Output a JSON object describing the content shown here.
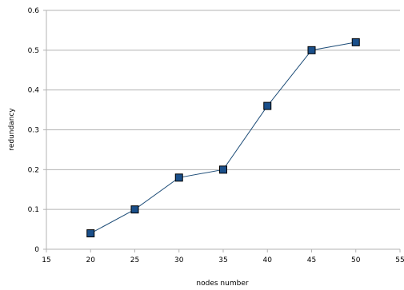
{
  "chart_data": {
    "type": "line",
    "title": "",
    "xlabel": "nodes number",
    "ylabel": "redundancy",
    "x": [
      20,
      25,
      30,
      35,
      40,
      45,
      50
    ],
    "series": [
      {
        "values": [
          0.04,
          0.1,
          0.18,
          0.2,
          0.36,
          0.5,
          0.52
        ]
      }
    ],
    "xlim": [
      15,
      55
    ],
    "ylim": [
      0,
      0.6
    ],
    "xticks": [
      "15",
      "20",
      "25",
      "30",
      "35",
      "40",
      "45",
      "50",
      "55"
    ],
    "yticks": [
      "0",
      "0.1",
      "0.2",
      "0.3",
      "0.4",
      "0.5",
      "0.6"
    ],
    "grid": "horizontal",
    "legend": "none",
    "colors": {
      "line": "#1f4e79",
      "marker_fill": "#1a4f8a",
      "marker_stroke": "#000000",
      "grid": "#b3b3b3"
    }
  }
}
